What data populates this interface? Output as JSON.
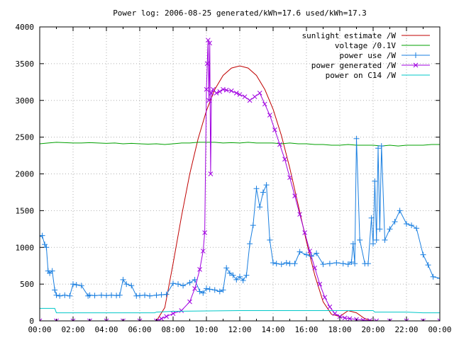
{
  "chart_data": {
    "type": "line",
    "title": "Power log: 2006-08-25 generated/kWh=17.6 used/kWh=17.3",
    "xlabel": "",
    "ylabel": "",
    "xlim": [
      0,
      24
    ],
    "ylim": [
      0,
      4000
    ],
    "grid": true,
    "legend_position": "top-right",
    "x_ticks": [
      "00:00",
      "02:00",
      "04:00",
      "06:00",
      "08:00",
      "10:00",
      "12:00",
      "14:00",
      "16:00",
      "18:00",
      "20:00",
      "22:00",
      "00:00"
    ],
    "y_ticks": [
      "0",
      "500",
      "1000",
      "1500",
      "2000",
      "2500",
      "3000",
      "3500",
      "4000"
    ],
    "series": [
      {
        "name": "sunlight estimate /W",
        "color": "#c00000",
        "style": "line",
        "x": [
          0,
          7.0,
          7.5,
          8,
          8.5,
          9,
          9.5,
          10,
          10.5,
          11,
          11.5,
          12,
          12.5,
          13,
          13.5,
          14,
          14.5,
          15,
          15.5,
          16,
          16.5,
          17,
          17.5,
          18,
          18.5,
          19,
          19.5,
          20,
          24
        ],
        "y": [
          0,
          0,
          180,
          780,
          1420,
          2000,
          2480,
          2860,
          3150,
          3340,
          3440,
          3470,
          3440,
          3340,
          3150,
          2880,
          2520,
          2080,
          1580,
          1080,
          620,
          260,
          90,
          60,
          140,
          110,
          30,
          0,
          0
        ]
      },
      {
        "name": "voltage /0.1V",
        "color": "#00a000",
        "style": "line",
        "x": [
          0,
          0.5,
          1,
          1.5,
          2,
          2.5,
          3,
          3.5,
          4,
          4.5,
          5,
          5.5,
          6,
          6.5,
          7,
          7.5,
          8,
          8.5,
          9,
          9.5,
          10,
          10.5,
          11,
          11.5,
          12,
          12.5,
          13,
          13.5,
          14,
          14.5,
          15,
          15.5,
          16,
          16.5,
          17,
          17.5,
          18,
          18.5,
          19,
          19.5,
          20,
          20.5,
          21,
          21.5,
          22,
          22.5,
          23,
          23.5,
          24
        ],
        "y": [
          2410,
          2420,
          2430,
          2425,
          2420,
          2420,
          2425,
          2420,
          2415,
          2420,
          2410,
          2415,
          2410,
          2405,
          2410,
          2400,
          2410,
          2420,
          2420,
          2430,
          2430,
          2430,
          2420,
          2425,
          2420,
          2430,
          2420,
          2420,
          2420,
          2410,
          2420,
          2410,
          2410,
          2400,
          2400,
          2390,
          2390,
          2400,
          2390,
          2390,
          2390,
          2380,
          2390,
          2380,
          2390,
          2390,
          2390,
          2400,
          2400
        ]
      },
      {
        "name": "power use /W",
        "color": "#1a7fe0",
        "style": "linespoints",
        "marker": "plus",
        "x": [
          0,
          0.15,
          0.3,
          0.4,
          0.5,
          0.6,
          0.75,
          0.9,
          1.0,
          1.2,
          1.5,
          1.8,
          2.0,
          2.2,
          2.5,
          2.9,
          3.0,
          3.3,
          3.7,
          4.0,
          4.3,
          4.6,
          4.8,
          5.0,
          5.2,
          5.5,
          5.8,
          6.0,
          6.3,
          6.6,
          7.0,
          7.3,
          7.6,
          8.0,
          8.3,
          8.6,
          9.0,
          9.3,
          9.6,
          9.8,
          10.0,
          10.2,
          10.5,
          10.8,
          11.0,
          11.2,
          11.4,
          11.6,
          11.8,
          12.0,
          12.2,
          12.4,
          12.6,
          12.8,
          13.0,
          13.2,
          13.4,
          13.6,
          13.8,
          14.0,
          14.2,
          14.5,
          14.8,
          15.0,
          15.3,
          15.6,
          16.0,
          16.3,
          16.6,
          17.0,
          17.4,
          17.8,
          18.2,
          18.5,
          18.7,
          18.8,
          18.9,
          19.0,
          19.2,
          19.5,
          19.7,
          19.9,
          20.0,
          20.1,
          20.2,
          20.3,
          20.4,
          20.5,
          20.7,
          21.0,
          21.3,
          21.6,
          22.0,
          22.3,
          22.6,
          23.0,
          23.3,
          23.6,
          24
        ],
        "y": [
          1150,
          1160,
          1040,
          1000,
          680,
          650,
          680,
          420,
          350,
          340,
          350,
          340,
          500,
          490,
          480,
          340,
          350,
          345,
          350,
          345,
          350,
          345,
          350,
          560,
          500,
          480,
          340,
          345,
          350,
          340,
          350,
          355,
          360,
          510,
          500,
          480,
          520,
          560,
          400,
          380,
          440,
          430,
          420,
          400,
          420,
          720,
          650,
          620,
          560,
          600,
          550,
          620,
          1050,
          1300,
          1800,
          1550,
          1750,
          1850,
          1100,
          790,
          780,
          770,
          790,
          780,
          780,
          940,
          900,
          880,
          920,
          770,
          780,
          790,
          780,
          770,
          800,
          1050,
          780,
          2480,
          1100,
          780,
          780,
          1400,
          1050,
          1900,
          1100,
          2350,
          1250,
          2380,
          1100,
          1250,
          1350,
          1500,
          1320,
          1300,
          1260,
          900,
          760,
          600,
          580
        ]
      },
      {
        "name": "power generated /W",
        "color": "#a000e0",
        "style": "linespoints",
        "marker": "cross",
        "x": [
          0,
          1,
          2,
          3,
          4,
          5,
          6,
          7.0,
          7.3,
          7.6,
          8.0,
          8.5,
          9.0,
          9.3,
          9.6,
          9.8,
          9.9,
          10.0,
          10.05,
          10.1,
          10.15,
          10.2,
          10.25,
          10.3,
          10.4,
          10.6,
          10.8,
          11.0,
          11.2,
          11.5,
          11.8,
          12.0,
          12.3,
          12.6,
          12.9,
          13.2,
          13.5,
          13.8,
          14.1,
          14.4,
          14.7,
          15.0,
          15.3,
          15.6,
          15.9,
          16.2,
          16.5,
          16.8,
          17.1,
          17.4,
          17.7,
          18.0,
          18.3,
          18.6,
          19.0,
          19.4,
          19.8,
          20.2,
          21,
          22,
          23,
          24
        ],
        "y": [
          0,
          0,
          0,
          0,
          0,
          0,
          0,
          0,
          30,
          60,
          100,
          140,
          260,
          440,
          700,
          950,
          1200,
          3150,
          3500,
          3820,
          3000,
          3780,
          2000,
          3100,
          3150,
          3100,
          3120,
          3150,
          3140,
          3130,
          3100,
          3080,
          3050,
          3000,
          3050,
          3100,
          2950,
          2800,
          2600,
          2400,
          2200,
          1950,
          1700,
          1450,
          1200,
          950,
          720,
          500,
          320,
          190,
          100,
          60,
          40,
          30,
          20,
          10,
          5,
          0,
          0,
          0,
          0,
          0
        ]
      },
      {
        "name": "power on C14 /W",
        "color": "#00c8c8",
        "style": "line",
        "x": [
          0,
          0.9,
          1.0,
          6.9,
          7.0,
          8.0,
          12.0,
          16.0,
          17.5,
          18.0,
          19.0,
          20.0,
          20.1,
          22.0,
          23.0,
          24
        ],
        "y": [
          170,
          170,
          110,
          110,
          120,
          130,
          140,
          140,
          140,
          140,
          140,
          140,
          120,
          120,
          110,
          110
        ]
      }
    ]
  }
}
